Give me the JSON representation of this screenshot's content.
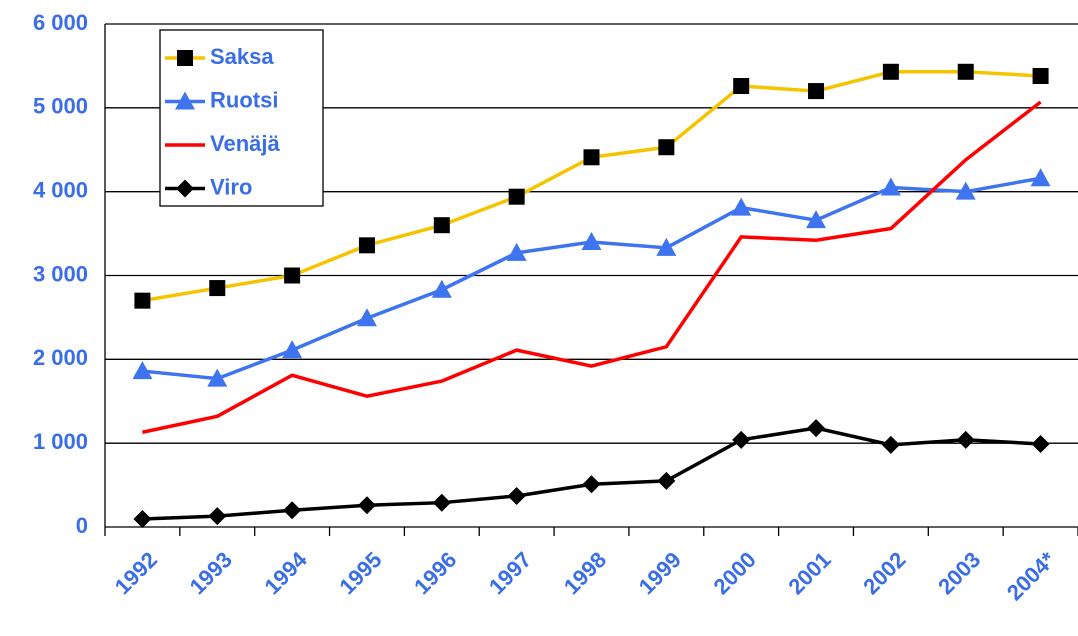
{
  "chart_data": {
    "type": "line",
    "categories": [
      "1992",
      "1993",
      "1994",
      "1995",
      "1996",
      "1997",
      "1998",
      "1999",
      "2000",
      "2001",
      "2002",
      "2003",
      "2004*"
    ],
    "series": [
      {
        "name": "Saksa",
        "color": "#f5c400",
        "marker": "square",
        "marker_color": "#000000",
        "values": [
          2700,
          2850,
          3000,
          3360,
          3600,
          3940,
          4410,
          4530,
          5260,
          5200,
          5430,
          5430,
          5380
        ]
      },
      {
        "name": "Ruotsi",
        "color": "#3f74f0",
        "marker": "triangle",
        "marker_color": "#3f74f0",
        "values": [
          1860,
          1770,
          2110,
          2490,
          2830,
          3270,
          3400,
          3330,
          3810,
          3660,
          4050,
          4000,
          4160
        ]
      },
      {
        "name": "Venäjä",
        "color": "#ff0000",
        "values": [
          1130,
          1320,
          1810,
          1560,
          1740,
          2110,
          1920,
          2150,
          3460,
          3420,
          3560,
          4380,
          5070
        ]
      },
      {
        "name": "Viro",
        "color": "#000000",
        "marker": "diamond",
        "marker_color": "#000000",
        "values": [
          95,
          130,
          200,
          260,
          290,
          370,
          510,
          550,
          1040,
          1180,
          980,
          1040,
          990
        ]
      }
    ],
    "ylim": [
      0,
      6000
    ],
    "yticks": [
      {
        "value": 0,
        "label": "0"
      },
      {
        "value": 1000,
        "label": "1 000"
      },
      {
        "value": 2000,
        "label": "2 000"
      },
      {
        "value": 3000,
        "label": "3 000"
      },
      {
        "value": 4000,
        "label": "4 000"
      },
      {
        "value": 5000,
        "label": "5 000"
      },
      {
        "value": 6000,
        "label": "6 000"
      }
    ],
    "grid": true,
    "legend": "upper left"
  }
}
